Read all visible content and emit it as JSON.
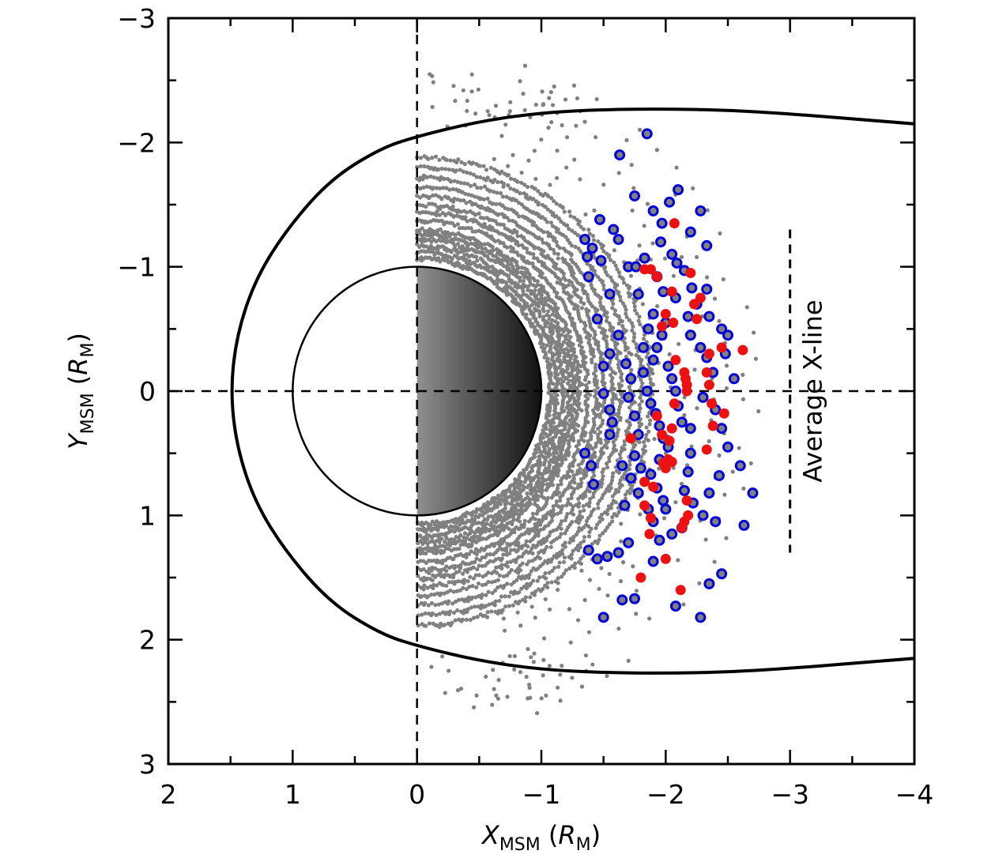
{
  "chart_data": {
    "type": "scatter",
    "title": "",
    "xlabel": "X_MSM (R_M)",
    "xlabel_parts": {
      "main": "X",
      "sub": "MSM",
      "unit_main": "R",
      "unit_sub": "M"
    },
    "ylabel": "Y_MSM (R_M)",
    "ylabel_parts": {
      "main": "Y",
      "sub": "MSM",
      "unit_main": "R",
      "unit_sub": "M"
    },
    "xlim": [
      2,
      -4
    ],
    "ylim": [
      -3,
      3
    ],
    "x_reversed": true,
    "y_reversed": true,
    "xticks": [
      2,
      1,
      0,
      -1,
      -2,
      -3,
      -4
    ],
    "xtick_labels": [
      "2",
      "1",
      "0",
      "−1",
      "−2",
      "−3",
      "−4"
    ],
    "x_minor_ticks": [
      1.5,
      0.5,
      -0.5,
      -1.5,
      -2.5,
      -3.5
    ],
    "yticks": [
      -3,
      -2,
      -1,
      0,
      1,
      2,
      3
    ],
    "ytick_labels": [
      "−3",
      "−2",
      "−1",
      "0",
      "1",
      "2",
      "3"
    ],
    "y_minor_ticks": [
      -2.5,
      -1.5,
      -0.5,
      0.5,
      1.5,
      2.5
    ],
    "grid": false,
    "legend": "none",
    "reference_lines": [
      {
        "name": "x-zero",
        "orientation": "vertical",
        "value": 0,
        "style": "dashed"
      },
      {
        "name": "y-zero",
        "orientation": "horizontal",
        "value": 0,
        "style": "dashed"
      }
    ],
    "annotations": [
      {
        "name": "average-x-line",
        "text": "Average X-line",
        "x": -3.0,
        "y_range": [
          -1.3,
          1.3
        ],
        "style": "dashed",
        "text_rotation": -90
      }
    ],
    "planet": {
      "name": "Mercury",
      "center": [
        0,
        0
      ],
      "radius": 1.0,
      "nightside_shading": "gradient white-to-black toward negative X"
    },
    "magnetopause": {
      "nose_x": 1.5,
      "points_upper": [
        [
          1.5,
          0
        ],
        [
          1.45,
          -0.45
        ],
        [
          1.3,
          -0.9
        ],
        [
          1.05,
          -1.3
        ],
        [
          0.7,
          -1.7
        ],
        [
          0.3,
          -1.95
        ],
        [
          0,
          -2.05
        ],
        [
          -0.5,
          -2.17
        ],
        [
          -1.0,
          -2.24
        ],
        [
          -1.5,
          -2.265
        ],
        [
          -2.0,
          -2.27
        ],
        [
          -2.5,
          -2.26
        ],
        [
          -3.0,
          -2.23
        ],
        [
          -3.5,
          -2.19
        ],
        [
          -4.0,
          -2.15
        ]
      ]
    },
    "series": [
      {
        "name": "orbit-coverage",
        "marker": "small-filled-circle",
        "color": "#808080",
        "description": "spacecraft trajectory samples in concentric arcs, X 0 to -2.7",
        "arc_radii": [
          1.07,
          1.12,
          1.17,
          1.22,
          1.26,
          1.3,
          1.37,
          1.44,
          1.5,
          1.57,
          1.64,
          1.72,
          1.8,
          1.88,
          1.96,
          2.05,
          2.15,
          2.25,
          2.38,
          2.5,
          2.62,
          2.75
        ]
      },
      {
        "name": "events-blue",
        "marker": "open-circle",
        "color": "#0000dd",
        "fill": "#808080",
        "points": [
          [
            -1.85,
            -2.07
          ],
          [
            -1.63,
            -1.9
          ],
          [
            -1.75,
            -1.57
          ],
          [
            -2.1,
            -1.62
          ],
          [
            -2.28,
            -1.45
          ],
          [
            -2.03,
            -1.52
          ],
          [
            -1.47,
            -1.38
          ],
          [
            -1.58,
            -1.3
          ],
          [
            -1.35,
            -1.22
          ],
          [
            -1.41,
            -1.15
          ],
          [
            -1.9,
            -1.45
          ],
          [
            -1.97,
            -1.35
          ],
          [
            -2.2,
            -1.28
          ],
          [
            -2.33,
            -1.17
          ],
          [
            -1.48,
            -1.05
          ],
          [
            -1.37,
            -1.08
          ],
          [
            -1.38,
            -0.92
          ],
          [
            -1.62,
            -1.22
          ],
          [
            -1.7,
            -1.0
          ],
          [
            -1.76,
            -1.0
          ],
          [
            -1.83,
            -1.07
          ],
          [
            -1.96,
            -1.2
          ],
          [
            -2.05,
            -1.1
          ],
          [
            -2.09,
            -1.03
          ],
          [
            -2.15,
            -0.97
          ],
          [
            -2.21,
            -0.83
          ],
          [
            -2.33,
            -0.82
          ],
          [
            -2.18,
            -0.6
          ],
          [
            -1.55,
            -0.78
          ],
          [
            -1.45,
            -0.58
          ],
          [
            -1.78,
            -0.78
          ],
          [
            -1.93,
            -0.92
          ],
          [
            -1.98,
            -0.8
          ],
          [
            -2.08,
            -0.75
          ],
          [
            -2.25,
            -0.7
          ],
          [
            -2.35,
            -0.6
          ],
          [
            -2.45,
            -0.5
          ],
          [
            -2.5,
            -0.45
          ],
          [
            -2.48,
            -0.3
          ],
          [
            -2.55,
            -0.1
          ],
          [
            -2.2,
            -0.45
          ],
          [
            -2.28,
            -0.35
          ],
          [
            -2.33,
            -0.27
          ],
          [
            -2.38,
            -0.15
          ],
          [
            -2.3,
            0.05
          ],
          [
            -2.4,
            0.15
          ],
          [
            -2.45,
            0.3
          ],
          [
            -2.5,
            0.45
          ],
          [
            -2.6,
            0.6
          ],
          [
            -2.7,
            0.82
          ],
          [
            -2.63,
            1.08
          ],
          [
            -2.45,
            1.47
          ],
          [
            -2.35,
            1.55
          ],
          [
            -2.28,
            1.82
          ],
          [
            -2.08,
            1.73
          ],
          [
            -1.75,
            1.67
          ],
          [
            -1.65,
            1.68
          ],
          [
            -1.5,
            1.82
          ],
          [
            -1.62,
            1.3
          ],
          [
            -1.7,
            1.22
          ],
          [
            -1.53,
            1.33
          ],
          [
            -1.38,
            1.28
          ],
          [
            -1.45,
            1.35
          ],
          [
            -1.9,
            1.37
          ],
          [
            -1.95,
            1.2
          ],
          [
            -2.05,
            1.15
          ],
          [
            -2.13,
            1.1
          ],
          [
            -2.3,
            1.0
          ],
          [
            -2.4,
            1.05
          ],
          [
            -2.35,
            0.82
          ],
          [
            -2.43,
            0.68
          ],
          [
            -1.55,
            0.35
          ],
          [
            -1.57,
            0.25
          ],
          [
            -1.55,
            0.15
          ],
          [
            -1.5,
            0.02
          ],
          [
            -1.5,
            -0.2
          ],
          [
            -1.55,
            -0.3
          ],
          [
            -1.62,
            -0.45
          ],
          [
            -1.68,
            -0.22
          ],
          [
            -1.72,
            -0.1
          ],
          [
            -1.7,
            0.05
          ],
          [
            -1.75,
            0.2
          ],
          [
            -1.78,
            0.35
          ],
          [
            -1.75,
            0.52
          ],
          [
            -1.8,
            0.62
          ],
          [
            -1.72,
            0.7
          ],
          [
            -1.78,
            0.82
          ],
          [
            -1.67,
            0.92
          ],
          [
            -1.82,
            -0.35
          ],
          [
            -1.86,
            -0.5
          ],
          [
            -1.9,
            -0.62
          ],
          [
            -1.82,
            -0.15
          ],
          [
            -1.85,
            0.0
          ],
          [
            -1.88,
            0.1
          ],
          [
            -1.92,
            0.18
          ],
          [
            -1.95,
            0.28
          ],
          [
            -1.98,
            0.38
          ],
          [
            -1.9,
            -0.25
          ],
          [
            -1.93,
            -0.35
          ],
          [
            -1.97,
            -0.45
          ],
          [
            -2.0,
            -0.55
          ],
          [
            -2.02,
            -0.2
          ],
          [
            -2.05,
            -0.1
          ],
          [
            -2.08,
            0.0
          ],
          [
            -2.1,
            0.12
          ],
          [
            -2.13,
            0.25
          ],
          [
            -2.02,
            0.45
          ],
          [
            -1.95,
            0.55
          ],
          [
            -1.88,
            0.67
          ],
          [
            -1.93,
            0.78
          ],
          [
            -1.98,
            0.88
          ],
          [
            -2.0,
            0.95
          ],
          [
            -1.86,
            0.95
          ],
          [
            -1.9,
            1.05
          ],
          [
            -2.2,
            0.3
          ],
          [
            -2.2,
            0.5
          ],
          [
            -2.18,
            0.65
          ],
          [
            -2.15,
            0.8
          ],
          [
            -2.22,
            0.9
          ],
          [
            -1.65,
            0.6
          ],
          [
            -1.4,
            0.6
          ],
          [
            -1.35,
            0.5
          ],
          [
            -1.42,
            0.75
          ]
        ]
      },
      {
        "name": "events-red",
        "marker": "filled-circle",
        "color": "#ee1111",
        "points": [
          [
            -2.07,
            -1.35
          ],
          [
            -1.83,
            -0.98
          ],
          [
            -1.88,
            -0.98
          ],
          [
            -1.93,
            -0.92
          ],
          [
            -2.2,
            -0.95
          ],
          [
            -2.05,
            -0.8
          ],
          [
            -2.28,
            -0.75
          ],
          [
            -2.23,
            -0.7
          ],
          [
            -2.25,
            -0.58
          ],
          [
            -2.0,
            -0.62
          ],
          [
            -2.06,
            -0.55
          ],
          [
            -1.97,
            -0.52
          ],
          [
            -2.35,
            -0.3
          ],
          [
            -2.45,
            -0.35
          ],
          [
            -2.62,
            -0.33
          ],
          [
            -2.08,
            -0.25
          ],
          [
            -2.15,
            -0.15
          ],
          [
            -2.16,
            -0.1
          ],
          [
            -2.17,
            -0.05
          ],
          [
            -2.17,
            0.0
          ],
          [
            -2.33,
            -0.15
          ],
          [
            -2.35,
            -0.05
          ],
          [
            -2.37,
            0.1
          ],
          [
            -2.47,
            0.18
          ],
          [
            -2.38,
            0.28
          ],
          [
            -2.07,
            0.1
          ],
          [
            -1.93,
            0.2
          ],
          [
            -2.05,
            0.3
          ],
          [
            -1.97,
            0.35
          ],
          [
            -2.03,
            0.4
          ],
          [
            -1.72,
            0.38
          ],
          [
            -2.33,
            0.47
          ],
          [
            -2.02,
            0.55
          ],
          [
            -2.05,
            0.57
          ],
          [
            -2.0,
            0.62
          ],
          [
            -1.98,
            0.58
          ],
          [
            -1.83,
            0.73
          ],
          [
            -1.9,
            0.77
          ],
          [
            -2.17,
            0.88
          ],
          [
            -2.15,
            1.05
          ],
          [
            -2.18,
            1.0
          ],
          [
            -2.13,
            1.1
          ],
          [
            -1.83,
            0.92
          ],
          [
            -1.88,
            1.02
          ],
          [
            -1.8,
            1.5
          ],
          [
            -2.0,
            1.35
          ],
          [
            -2.12,
            1.6
          ],
          [
            -1.87,
            1.15
          ]
        ]
      }
    ]
  }
}
